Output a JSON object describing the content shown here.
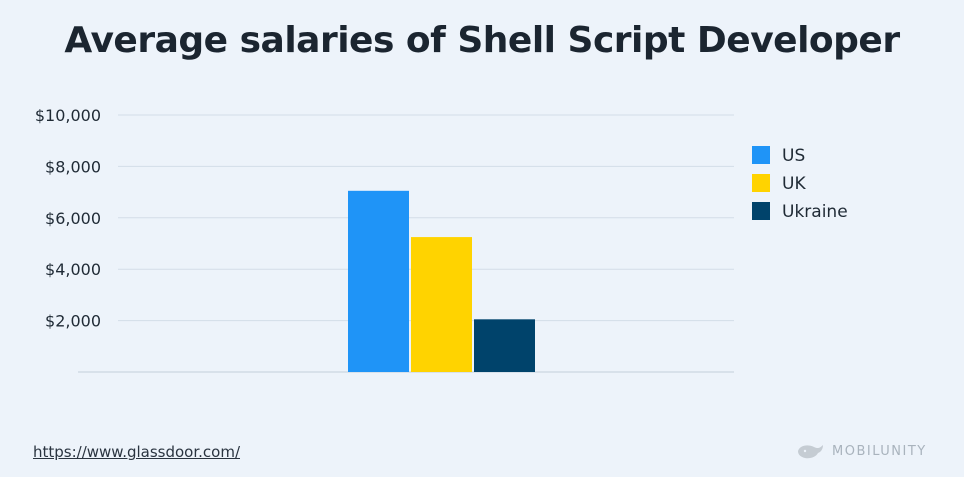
{
  "chart_data": {
    "type": "bar",
    "title": "Average salaries of Shell Script Developer",
    "categories": [
      ""
    ],
    "series": [
      {
        "name": "US",
        "color": "#1f94f7",
        "values": [
          7050
        ]
      },
      {
        "name": "UK",
        "color": "#ffd300",
        "values": [
          5250
        ]
      },
      {
        "name": "Ukraine",
        "color": "#00436b",
        "values": [
          2050
        ]
      }
    ],
    "yticks": [
      2000,
      4000,
      6000,
      8000,
      10000
    ],
    "ytick_labels": [
      "$2,000",
      "$4,000",
      "$6,000",
      "$8,000",
      "$10,000"
    ],
    "ylim": [
      0,
      10000
    ],
    "grid": true,
    "legend": "right"
  },
  "footer": {
    "source": "https://www.glassdoor.com/",
    "brand": "MOBILUNITY",
    "brand_icon": "whale-icon"
  }
}
